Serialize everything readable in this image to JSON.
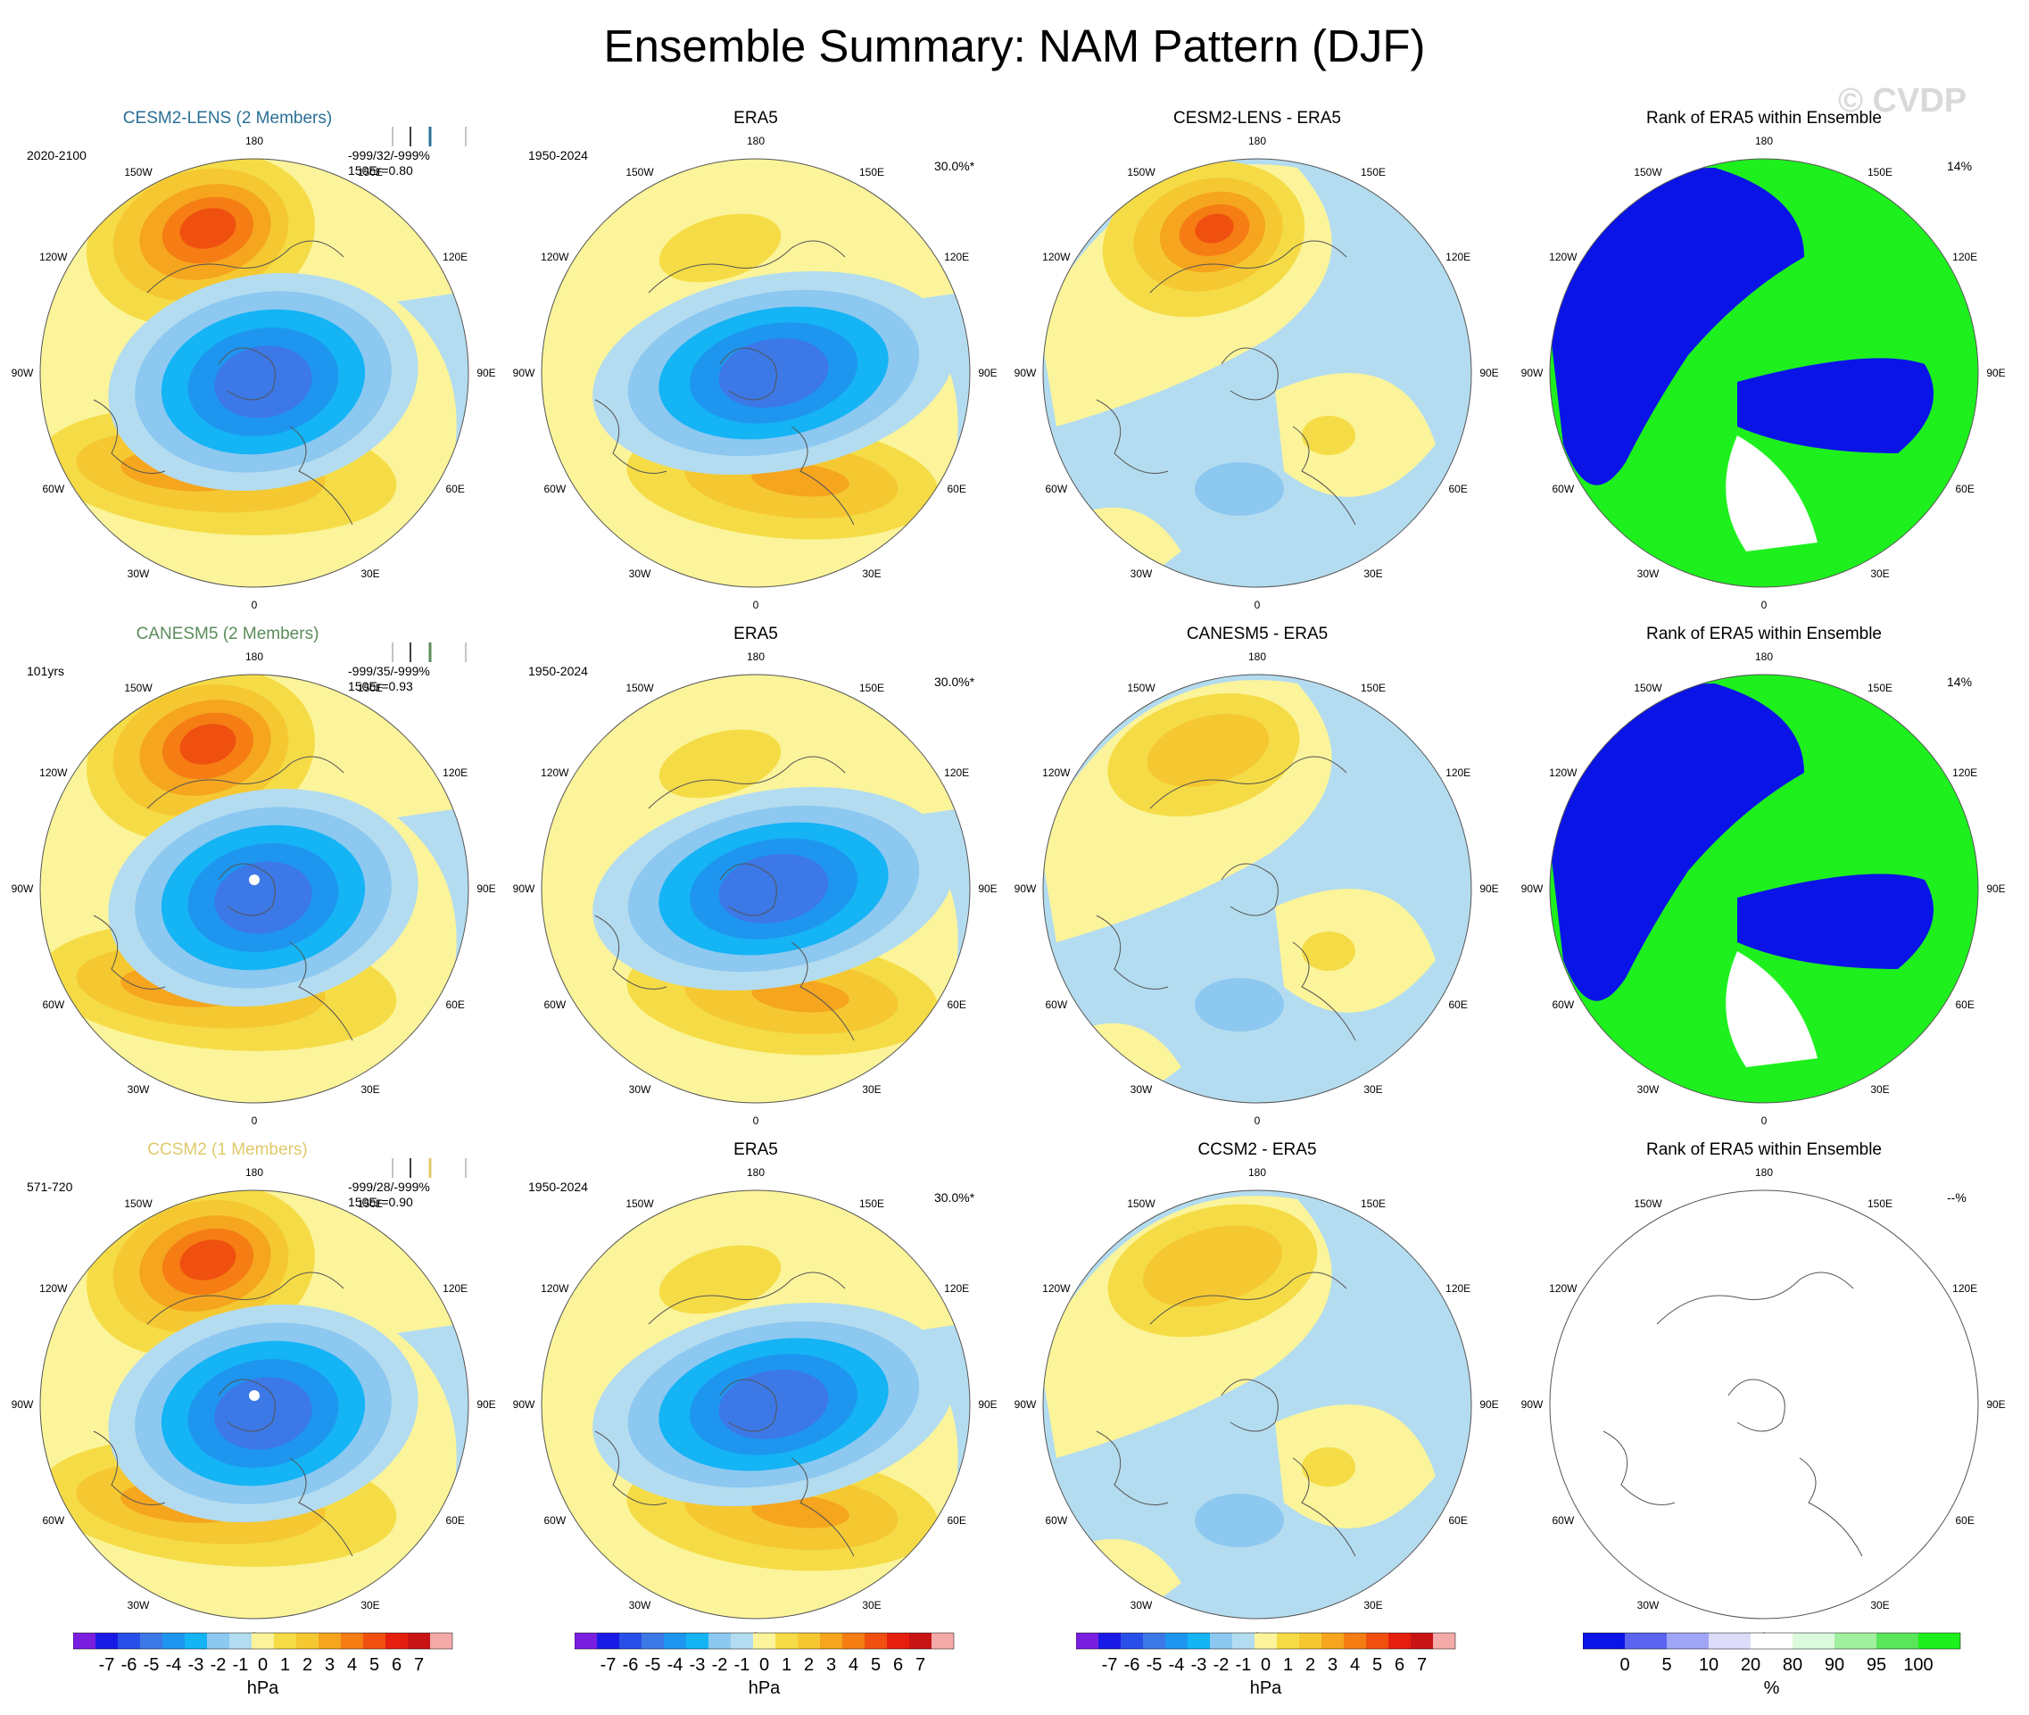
{
  "title": "Ensemble Summary: NAM Pattern (DJF)",
  "watermark": "© CVDP",
  "lon_labels": [
    "180",
    "150E",
    "120E",
    "90E",
    "60E",
    "30E",
    "0",
    "30W",
    "60W",
    "90W",
    "120W",
    "150W"
  ],
  "colors": {
    "model_cesm2": "#2a6f97",
    "model_canesm5": "#5b8c5a",
    "model_ccsm2": "#e0c96a",
    "ocean_bg": "#fbf49a",
    "land_line": "#555555",
    "rank_blue": "#0a14e6",
    "rank_green": "#1ef01e"
  },
  "rows": [
    {
      "model": {
        "title": "CESM2-LENS (2 Members)",
        "period": "2020-2100",
        "stats": [
          "-999/32/-999%",
          "150Er=0.80"
        ],
        "color": "#2a6f97"
      },
      "obs": {
        "title": "ERA5",
        "period": "1950-2024",
        "pct": "30.0%*"
      },
      "diff": {
        "title": "CESM2-LENS - ERA5"
      },
      "rank": {
        "title": "Rank of ERA5 within Ensemble",
        "pct": "14%"
      }
    },
    {
      "model": {
        "title": "CANESM5 (2 Members)",
        "period": "101yrs",
        "stats": [
          "-999/35/-999%",
          "150Er=0.93"
        ],
        "color": "#5b8c5a"
      },
      "obs": {
        "title": "ERA5",
        "period": "1950-2024",
        "pct": "30.0%*"
      },
      "diff": {
        "title": "CANESM5 - ERA5"
      },
      "rank": {
        "title": "Rank of ERA5 within Ensemble",
        "pct": "14%"
      }
    },
    {
      "model": {
        "title": "CCSM2 (1 Members)",
        "period": "571-720",
        "stats": [
          "-999/28/-999%",
          "150Er=0.90"
        ],
        "color": "#e0c96a"
      },
      "obs": {
        "title": "ERA5",
        "period": "1950-2024",
        "pct": "30.0%*"
      },
      "diff": {
        "title": "CCSM2 - ERA5"
      },
      "rank": {
        "title": "Rank of ERA5 within Ensemble",
        "pct": "--%"
      }
    }
  ],
  "colorbar_hpa": {
    "labels": [
      "-7",
      "-6",
      "-5",
      "-4",
      "-3",
      "-2",
      "-1",
      "0",
      "1",
      "2",
      "3",
      "4",
      "5",
      "6",
      "7"
    ],
    "unit": "hPa",
    "colors": [
      "#7a1fe0",
      "#1a1ae6",
      "#2850e8",
      "#3c78e6",
      "#1e96f0",
      "#14b4f5",
      "#8cc8f0",
      "#b4dcf0",
      "#fbf49a",
      "#f5dc46",
      "#f5c832",
      "#f5a51e",
      "#f57d14",
      "#f0500f",
      "#e61e0f",
      "#c81414",
      "#f5aaaa"
    ]
  },
  "colorbar_rank": {
    "labels": [
      "0",
      "5",
      "10",
      "20",
      "80",
      "90",
      "95",
      "100"
    ],
    "unit": "%",
    "colors": [
      "#0a14e6",
      "#5a64f0",
      "#a0a5f5",
      "#dcdcfa",
      "#ffffff",
      "#dcfadc",
      "#a0f0a0",
      "#5ae65a",
      "#1ef01e"
    ]
  }
}
